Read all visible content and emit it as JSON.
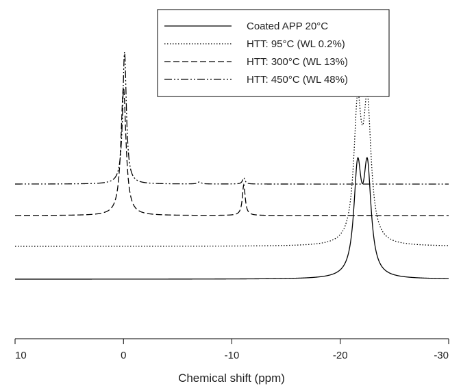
{
  "chart_data": {
    "type": "line",
    "title": "",
    "xlabel": "Chemical shift (ppm)",
    "ylabel": "",
    "xlim": [
      10,
      -30
    ],
    "x_ticks": [
      "10",
      "0",
      "-10",
      "-20",
      "-30"
    ],
    "x_tick_values": [
      10,
      0,
      -10,
      -20,
      -30
    ],
    "y_axis_visible": false,
    "grid": false,
    "legend_position": "top-right",
    "series": [
      {
        "name": "Coated APP 20°C",
        "style": "solid",
        "color": "#000000",
        "baseline": 0,
        "peaks": [
          {
            "center": -21.6,
            "height": 150,
            "width": 0.42
          },
          {
            "center": -22.5,
            "height": 150,
            "width": 0.42
          }
        ]
      },
      {
        "name": "HTT: 95°C (WL 0.2%)",
        "style": "dotted",
        "color": "#000000",
        "baseline": 48,
        "peaks": [
          {
            "center": -21.6,
            "height": 190,
            "width": 0.42
          },
          {
            "center": -22.5,
            "height": 190,
            "width": 0.42
          }
        ]
      },
      {
        "name": "HTT: 300°C (WL 13%)",
        "style": "dashed",
        "color": "#000000",
        "baseline": 93,
        "peaks": [
          {
            "center": 0.0,
            "height": 188,
            "width": 0.28
          },
          {
            "center": -11.1,
            "height": 45,
            "width": 0.16
          }
        ]
      },
      {
        "name": "HTT: 450°C (WL 48%)",
        "style": "dashdotdot",
        "color": "#000000",
        "baseline": 139,
        "peaks": [
          {
            "center": -0.1,
            "height": 193,
            "width": 0.2
          },
          {
            "center": -11.1,
            "height": 9,
            "width": 0.14
          },
          {
            "center": -7.0,
            "height": 3,
            "width": 0.2
          }
        ]
      }
    ]
  }
}
